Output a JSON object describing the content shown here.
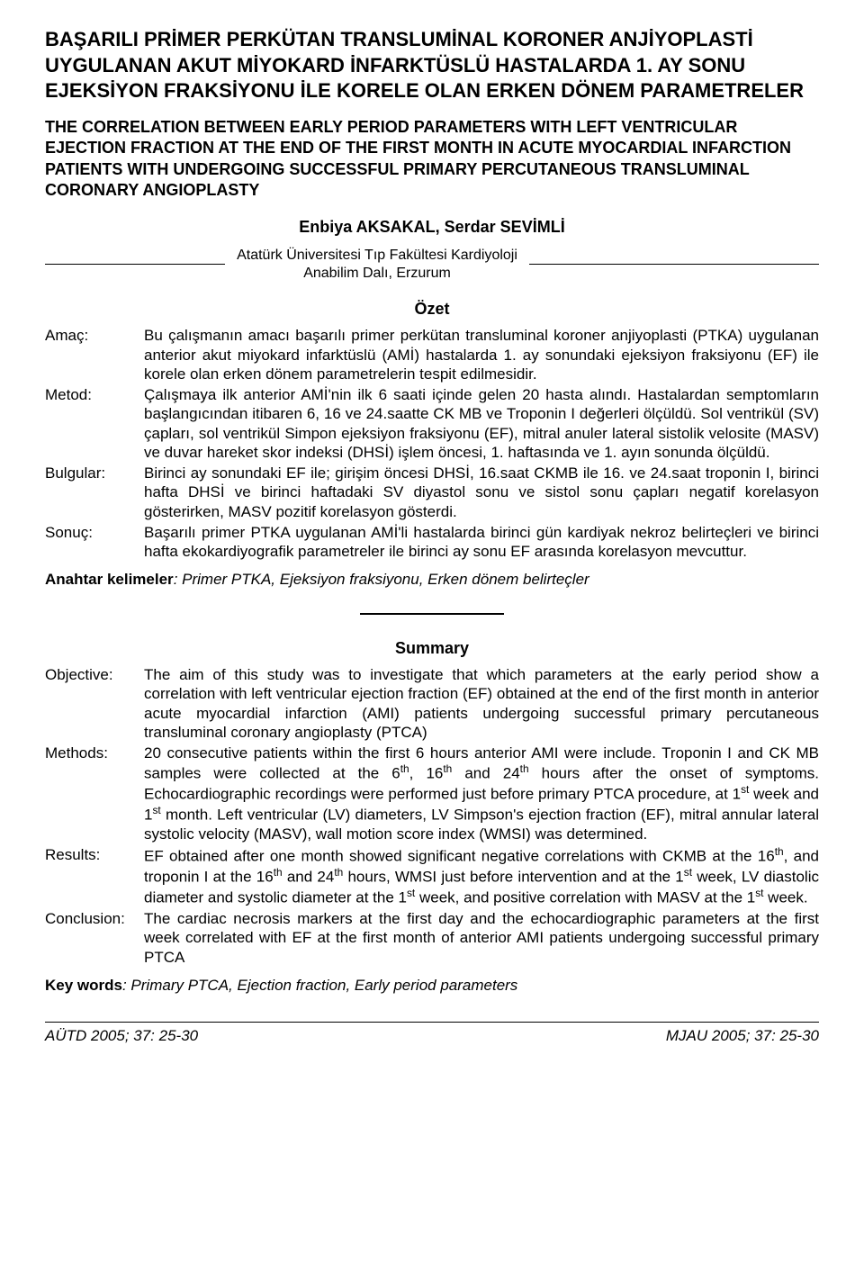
{
  "title_tr_line1": "BAŞARILI PRİMER PERKÜTAN TRANSLUMİNAL KORONER ANJİYOPLASTİ UYGULANAN AKUT MİYOKARD İNFARKTÜSLÜ HASTALARDA 1. AY SONU EJEKSİYON FRAKSİYONU İLE KORELE OLAN ERKEN DÖNEM PARAMETRELER",
  "title_en": "THE CORRELATION BETWEEN EARLY PERIOD PARAMETERS WITH LEFT VENTRICULAR EJECTION FRACTION AT THE END OF THE FIRST MONTH IN ACUTE MYOCARDIAL INFARCTION PATIENTS WITH UNDERGOING SUCCESSFUL PRIMARY PERCUTANEOUS TRANSLUMINAL CORONARY ANGIOPLASTY",
  "authors": "Enbiya AKSAKAL, Serdar SEVİMLİ",
  "affiliation": "Atatürk Üniversitesi Tıp Fakültesi Kardiyoloji Anabilim Dalı, Erzurum",
  "ozet_heading": "Özet",
  "ozet": {
    "amac_label": "Amaç:",
    "amac_text": "Bu çalışmanın amacı başarılı primer perkütan transluminal koroner anjiyoplasti (PTKA) uygulanan anterior akut miyokard infarktüslü (AMİ) hastalarda 1. ay sonundaki ejeksiyon fraksiyonu (EF) ile korele olan erken dönem parametrelerin tespit edilmesidir.",
    "metod_label": "Metod:",
    "metod_text": "Çalışmaya ilk anterior AMİ'nin ilk 6 saati içinde gelen 20 hasta alındı. Hastalardan semptomların başlangıcından itibaren 6, 16 ve 24.saatte CK MB ve Troponin I değerleri ölçüldü. Sol ventrikül (SV) çapları, sol ventrikül Simpon ejeksiyon fraksiyonu (EF), mitral anuler lateral sistolik velosite (MASV) ve duvar hareket skor indeksi (DHSİ) işlem öncesi, 1. haftasında ve 1. ayın sonunda ölçüldü.",
    "bulgular_label": "Bulgular:",
    "bulgular_text": "Birinci ay sonundaki EF ile; girişim öncesi DHSİ, 16.saat CKMB ile 16. ve 24.saat troponin I, birinci hafta DHSİ ve birinci haftadaki SV diyastol sonu ve sistol sonu çapları negatif korelasyon gösterirken, MASV pozitif korelasyon gösterdi.",
    "sonuc_label": "Sonuç:",
    "sonuc_text": "Başarılı primer PTKA uygulanan AMİ'li hastalarda birinci gün kardiyak nekroz belirteçleri ve birinci hafta ekokardiyografik parametreler ile birinci ay sonu EF arasında korelasyon mevcuttur."
  },
  "anahtar_label": "Anahtar kelimeler",
  "anahtar_val": ": Primer PTKA, Ejeksiyon fraksiyonu, Erken dönem belirteçler",
  "summary_heading": "Summary",
  "summary": {
    "objective_label": "Objective:",
    "objective_text": "The aim of this study was to investigate that which parameters at the early period show a correlation with left ventricular ejection fraction (EF) obtained at the end of the first month in anterior acute myocardial infarction (AMI) patients undergoing successful primary percutaneous transluminal coronary angioplasty (PTCA)",
    "methods_label": "Methods:",
    "results_label": "Results:",
    "conclusion_label": "Conclusion:",
    "conclusion_text": "The cardiac necrosis markers at the first day and the echocardiographic parameters at the first week correlated with EF at the first month of anterior AMI patients undergoing successful primary PTCA"
  },
  "key_label": "Key words",
  "key_val": ": Primary PTCA, Ejection fraction, Early period parameters",
  "footer_left": "AÜTD 2005; 37: 25-30",
  "footer_right": "MJAU 2005; 37: 25-30"
}
